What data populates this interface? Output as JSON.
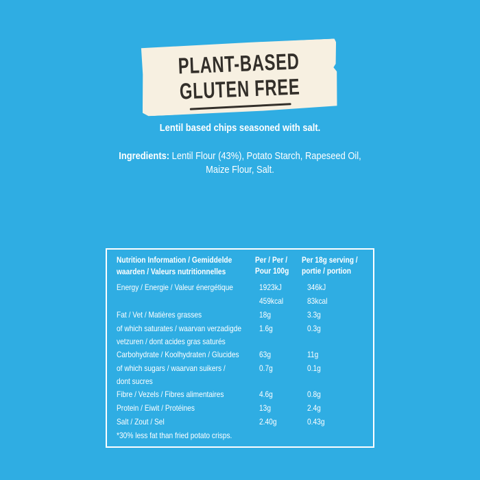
{
  "colors": {
    "background": "#2FADE3",
    "banner_background": "#F7F0E1",
    "banner_text": "#332F2A",
    "body_text": "#FFFFFF",
    "table_border": "#FFFFFF"
  },
  "banner": {
    "line1": "PLANT-BASED",
    "line2": "GLUTEN FREE"
  },
  "description": "Lentil based chips seasoned with salt.",
  "ingredients": {
    "label": "Ingredients:",
    "line1_rest": " Lentil Flour (43%), Potato Starch, Rapeseed Oil,",
    "line2": "Maize Flour, Salt."
  },
  "nutrition": {
    "header": {
      "col1": [
        "Nutrition Information / Gemiddelde",
        "waarden / Valeurs nutritionnelles"
      ],
      "col2": [
        "Per / Per /",
        "Pour 100g"
      ],
      "col3": [
        "Per 18g serving /",
        "portie / portion"
      ]
    },
    "rows": [
      {
        "label": [
          "Energy / Energie / Valeur énergétique"
        ],
        "per100": [
          "1923kJ",
          "459kcal"
        ],
        "per18": [
          "346kJ",
          "83kcal"
        ]
      },
      {
        "label": [
          "Fat / Vet / Matières grasses"
        ],
        "per100": [
          "18g"
        ],
        "per18": [
          "3.3g"
        ]
      },
      {
        "label": [
          "of which saturates / waarvan verzadigde",
          "vetzuren / dont acides gras saturés"
        ],
        "per100": [
          "1.6g"
        ],
        "per18": [
          "0.3g"
        ]
      },
      {
        "label": [
          "Carbohydrate / Koolhydraten / Glucides"
        ],
        "per100": [
          "63g"
        ],
        "per18": [
          "11g"
        ]
      },
      {
        "label": [
          "of which sugars / waarvan suikers /",
          "dont sucres"
        ],
        "per100": [
          "0.7g"
        ],
        "per18": [
          "0.1g"
        ]
      },
      {
        "label": [
          "Fibre / Vezels / Fibres alimentaires"
        ],
        "per100": [
          "4.6g"
        ],
        "per18": [
          "0.8g"
        ]
      },
      {
        "label": [
          "Protein / Eiwit / Protéines"
        ],
        "per100": [
          "13g"
        ],
        "per18": [
          "2.4g"
        ]
      },
      {
        "label": [
          "Salt / Zout / Sel"
        ],
        "per100": [
          "2.40g"
        ],
        "per18": [
          "0.43g"
        ]
      }
    ],
    "footnote": "*30% less fat than fried potato crisps."
  }
}
